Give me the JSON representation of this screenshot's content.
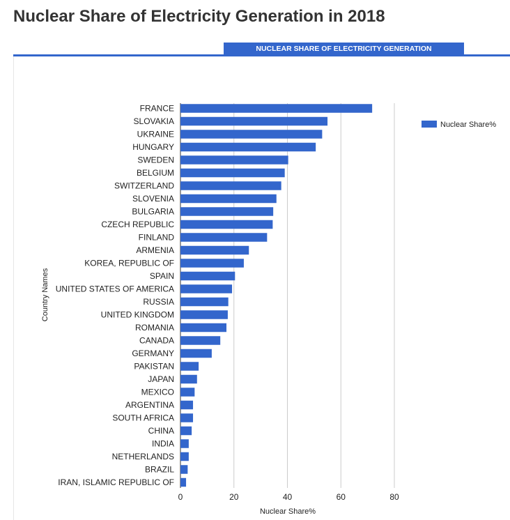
{
  "page": {
    "title": "Nuclear Share of Electricity Generation in 2018",
    "tab_label": "NUCLEAR SHARE OF ELECTRICITY GENERATION"
  },
  "colors": {
    "accent": "#3366cc",
    "title_text": "#333333",
    "grid": "#cccccc"
  },
  "chart_data": {
    "type": "bar",
    "orientation": "horizontal",
    "categories": [
      "FRANCE",
      "SLOVAKIA",
      "UKRAINE",
      "HUNGARY",
      "SWEDEN",
      "BELGIUM",
      "SWITZERLAND",
      "SLOVENIA",
      "BULGARIA",
      "CZECH REPUBLIC",
      "FINLAND",
      "ARMENIA",
      "KOREA, REPUBLIC OF",
      "SPAIN",
      "UNITED STATES OF AMERICA",
      "RUSSIA",
      "UNITED KINGDOM",
      "ROMANIA",
      "CANADA",
      "GERMANY",
      "PAKISTAN",
      "JAPAN",
      "MEXICO",
      "ARGENTINA",
      "SOUTH AFRICA",
      "CHINA",
      "INDIA",
      "NETHERLANDS",
      "BRAZIL",
      "IRAN, ISLAMIC REPUBLIC OF"
    ],
    "series": [
      {
        "name": "Nuclear Share%",
        "color": "#3366cc",
        "values": [
          71.7,
          55.0,
          53.0,
          50.6,
          40.3,
          39.0,
          37.7,
          35.9,
          34.7,
          34.5,
          32.4,
          25.6,
          23.7,
          20.4,
          19.3,
          17.9,
          17.7,
          17.2,
          14.9,
          11.7,
          6.8,
          6.2,
          5.3,
          4.7,
          4.7,
          4.2,
          3.1,
          3.1,
          2.7,
          2.1
        ]
      }
    ],
    "xlabel": "Nuclear Share%",
    "ylabel": "Country Names",
    "xlim": [
      0,
      80
    ],
    "xticks": [
      0,
      20,
      40,
      60,
      80
    ],
    "grid": true,
    "legend": "right"
  }
}
